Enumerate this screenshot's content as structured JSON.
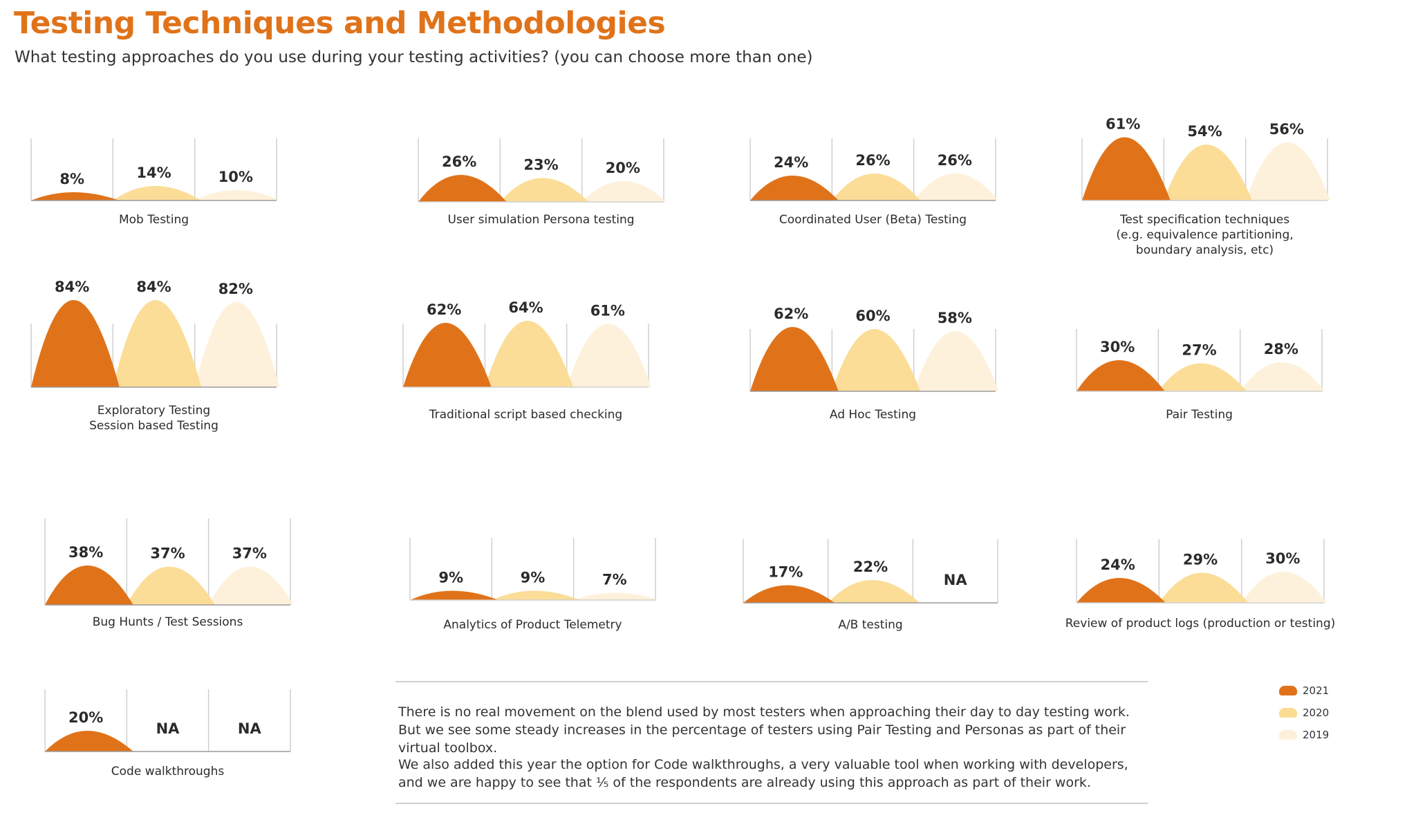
{
  "header": {
    "title": "Testing Techniques and Methodologies",
    "subtitle": "What testing approaches do you use during your testing activities? (you can choose more than one)"
  },
  "colors": {
    "2021": "#E0731A",
    "2020": "#FBDB92",
    "2019": "#FDF0D9",
    "frame": "#cfcfcf"
  },
  "legend": {
    "items": [
      {
        "label": "2021",
        "color": "#E0731A"
      },
      {
        "label": "2020",
        "color": "#FBDB92"
      },
      {
        "label": "2019",
        "color": "#FDF0D9"
      }
    ]
  },
  "notes": {
    "para1": "There is no real movement on the blend used by most testers when approaching their day to day testing work.  But we see some steady increases in the percentage of testers using Pair Testing and Personas as part of their virtual toolbox.",
    "para2": "We also added this year the option for Code walkthroughs, a very valuable tool when working with developers, and we are happy to see that ⅕ of the respondents are already using this approach as part of their work."
  },
  "chart_data": [
    {
      "type": "area",
      "label": "Mob Testing",
      "categories": [
        "2021",
        "2020",
        "2019"
      ],
      "values": [
        8,
        14,
        10
      ],
      "value_labels": [
        "8%",
        "14%",
        "10%"
      ],
      "ylim": [
        0,
        100
      ]
    },
    {
      "type": "area",
      "label": "User simulation Persona testing",
      "categories": [
        "2021",
        "2020",
        "2019"
      ],
      "values": [
        26,
        23,
        20
      ],
      "value_labels": [
        "26%",
        "23%",
        "20%"
      ],
      "ylim": [
        0,
        100
      ]
    },
    {
      "type": "area",
      "label": "Coordinated User (Beta) Testing",
      "categories": [
        "2021",
        "2020",
        "2019"
      ],
      "values": [
        24,
        26,
        26
      ],
      "value_labels": [
        "24%",
        "26%",
        "26%"
      ],
      "ylim": [
        0,
        100
      ]
    },
    {
      "type": "area",
      "label": "Test specification techniques\n(e.g. equivalence partitioning,\nboundary analysis, etc)",
      "categories": [
        "2021",
        "2020",
        "2019"
      ],
      "values": [
        61,
        54,
        56
      ],
      "value_labels": [
        "61%",
        "54%",
        "56%"
      ],
      "ylim": [
        0,
        100
      ]
    },
    {
      "type": "area",
      "label": "Exploratory Testing\nSession based Testing",
      "categories": [
        "2021",
        "2020",
        "2019"
      ],
      "values": [
        84,
        84,
        82
      ],
      "value_labels": [
        "84%",
        "84%",
        "82%"
      ],
      "ylim": [
        0,
        100
      ]
    },
    {
      "type": "area",
      "label": "Traditional script based checking",
      "categories": [
        "2021",
        "2020",
        "2019"
      ],
      "values": [
        62,
        64,
        61
      ],
      "value_labels": [
        "62%",
        "64%",
        "61%"
      ],
      "ylim": [
        0,
        100
      ]
    },
    {
      "type": "area",
      "label": "Ad Hoc Testing",
      "categories": [
        "2021",
        "2020",
        "2019"
      ],
      "values": [
        62,
        60,
        58
      ],
      "value_labels": [
        "62%",
        "60%",
        "58%"
      ],
      "ylim": [
        0,
        100
      ]
    },
    {
      "type": "area",
      "label": "Pair Testing",
      "categories": [
        "2021",
        "2020",
        "2019"
      ],
      "values": [
        30,
        27,
        28
      ],
      "value_labels": [
        "30%",
        "27%",
        "28%"
      ],
      "ylim": [
        0,
        100
      ]
    },
    {
      "type": "area",
      "label": "Bug Hunts / Test Sessions",
      "categories": [
        "2021",
        "2020",
        "2019"
      ],
      "values": [
        38,
        37,
        37
      ],
      "value_labels": [
        "38%",
        "37%",
        "37%"
      ],
      "ylim": [
        0,
        100
      ]
    },
    {
      "type": "area",
      "label": "Analytics of Product Telemetry",
      "categories": [
        "2021",
        "2020",
        "2019"
      ],
      "values": [
        9,
        9,
        7
      ],
      "value_labels": [
        "9%",
        "9%",
        "7%"
      ],
      "ylim": [
        0,
        100
      ]
    },
    {
      "type": "area",
      "label": "A/B testing",
      "categories": [
        "2021",
        "2020",
        "2019"
      ],
      "values": [
        17,
        22,
        null
      ],
      "value_labels": [
        "17%",
        "22%",
        "NA"
      ],
      "ylim": [
        0,
        100
      ]
    },
    {
      "type": "area",
      "label": "Review of product logs (production or testing)",
      "categories": [
        "2021",
        "2020",
        "2019"
      ],
      "values": [
        24,
        29,
        30
      ],
      "value_labels": [
        "24%",
        "29%",
        "30%"
      ],
      "ylim": [
        0,
        100
      ]
    },
    {
      "type": "area",
      "label": "Code walkthroughs",
      "categories": [
        "2021",
        "2020",
        "2019"
      ],
      "values": [
        20,
        null,
        null
      ],
      "value_labels": [
        "20%",
        "NA",
        "NA"
      ],
      "ylim": [
        0,
        100
      ]
    }
  ]
}
